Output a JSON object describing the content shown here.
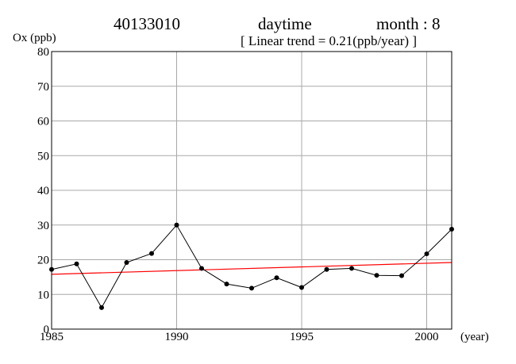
{
  "header": {
    "station": "40133010",
    "period": "daytime",
    "month_label": "month : 8",
    "trend_label": "[ Linear trend = 0.21(ppb/year) ]"
  },
  "chart_data": {
    "type": "line",
    "ylabel": "Ox (ppb)",
    "xlabel": "(year)",
    "xlim": [
      1985,
      2001
    ],
    "ylim": [
      0,
      80
    ],
    "x_ticks": [
      1985,
      1990,
      1995,
      2000
    ],
    "y_ticks": [
      0,
      10,
      20,
      30,
      40,
      50,
      60,
      70,
      80
    ],
    "grid": true,
    "series": [
      {
        "color": "#000000",
        "x": [
          1985,
          1986,
          1987,
          1988,
          1989,
          1990,
          1991,
          1992,
          1993,
          1994,
          1995,
          1996,
          1997,
          1998,
          1999,
          2000,
          2001
        ],
        "values": [
          17.2,
          18.8,
          6.2,
          19.2,
          21.8,
          30.0,
          17.5,
          13.0,
          11.8,
          14.8,
          12.0,
          17.2,
          17.5,
          15.5,
          15.4,
          21.7,
          28.8
        ]
      }
    ],
    "trend_line": {
      "color": "#ff0000",
      "slope": 0.21,
      "x": [
        1985,
        2001
      ],
      "values": [
        15.8,
        19.2
      ]
    }
  }
}
